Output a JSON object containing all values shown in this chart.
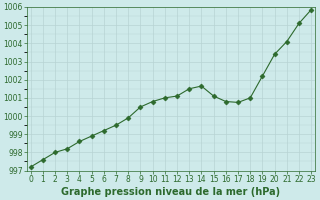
{
  "x": [
    0,
    1,
    2,
    3,
    4,
    5,
    6,
    7,
    8,
    9,
    10,
    11,
    12,
    13,
    14,
    15,
    16,
    17,
    18,
    19,
    20,
    21,
    22,
    23
  ],
  "y": [
    997.2,
    997.6,
    998.0,
    998.2,
    998.6,
    998.9,
    999.2,
    999.5,
    999.9,
    1000.5,
    1000.8,
    1001.0,
    1001.1,
    1001.5,
    1001.65,
    1001.1,
    1000.8,
    1000.75,
    1001.0,
    1002.2,
    1003.4,
    1004.1,
    1005.1,
    1005.85
  ],
  "line_color": "#2d6a2d",
  "marker": "D",
  "marker_size": 2.5,
  "bg_color": "#ceeaea",
  "grid_color": "#b8d4d4",
  "xlim": [
    -0.3,
    23.3
  ],
  "ylim": [
    997,
    1006
  ],
  "yticks": [
    997,
    998,
    999,
    1000,
    1001,
    1002,
    1003,
    1004,
    1005,
    1006
  ],
  "xticks": [
    0,
    1,
    2,
    3,
    4,
    5,
    6,
    7,
    8,
    9,
    10,
    11,
    12,
    13,
    14,
    15,
    16,
    17,
    18,
    19,
    20,
    21,
    22,
    23
  ],
  "xlabel": "Graphe pression niveau de la mer (hPa)",
  "title_fontsize": 7,
  "tick_fontsize": 5.5,
  "label_color": "#2d6a2d"
}
